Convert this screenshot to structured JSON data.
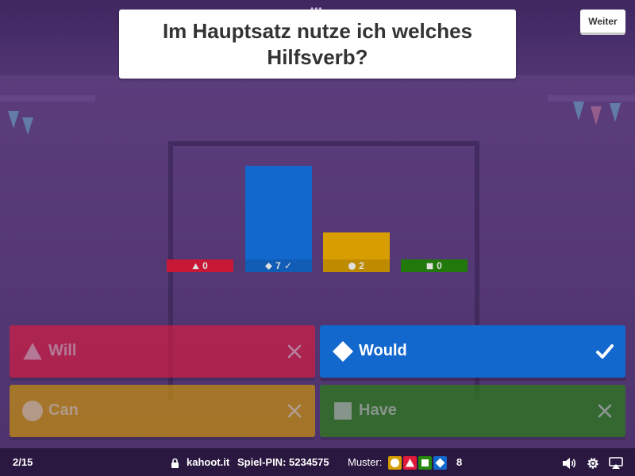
{
  "question": {
    "text": "Im Hauptsatz nutze ich welches Hilfsverb?",
    "menu_dots": "•••"
  },
  "next_button": {
    "label": "Weiter"
  },
  "results": [
    {
      "shape": "triangle",
      "color": "#e21b3c",
      "count": 0,
      "correct": false
    },
    {
      "shape": "diamond",
      "color": "#1368ce",
      "count": 7,
      "correct": true
    },
    {
      "shape": "circle",
      "color": "#d89e00",
      "count": 2,
      "correct": false
    },
    {
      "shape": "square",
      "color": "#26890c",
      "count": 0,
      "correct": false
    }
  ],
  "chart_max": 7,
  "correct_mark": "✓",
  "answers": [
    {
      "label": "Will",
      "shape": "triangle",
      "color": "#e21b3c",
      "correct": false
    },
    {
      "label": "Would",
      "shape": "diamond",
      "color": "#1368ce",
      "correct": true
    },
    {
      "label": "Can",
      "shape": "circle",
      "color": "#d89e00",
      "correct": false
    },
    {
      "label": "Have",
      "shape": "square",
      "color": "#26890c",
      "correct": false
    }
  ],
  "footer": {
    "progress": "2/15",
    "site": "kahoot.it",
    "pin_label": "Spiel-PIN:",
    "pin": "5234575",
    "pattern_label": "Muster:",
    "pattern_count": "8",
    "icons": [
      "lock-icon",
      "volume-icon",
      "gear-icon",
      "airplay-icon"
    ]
  }
}
